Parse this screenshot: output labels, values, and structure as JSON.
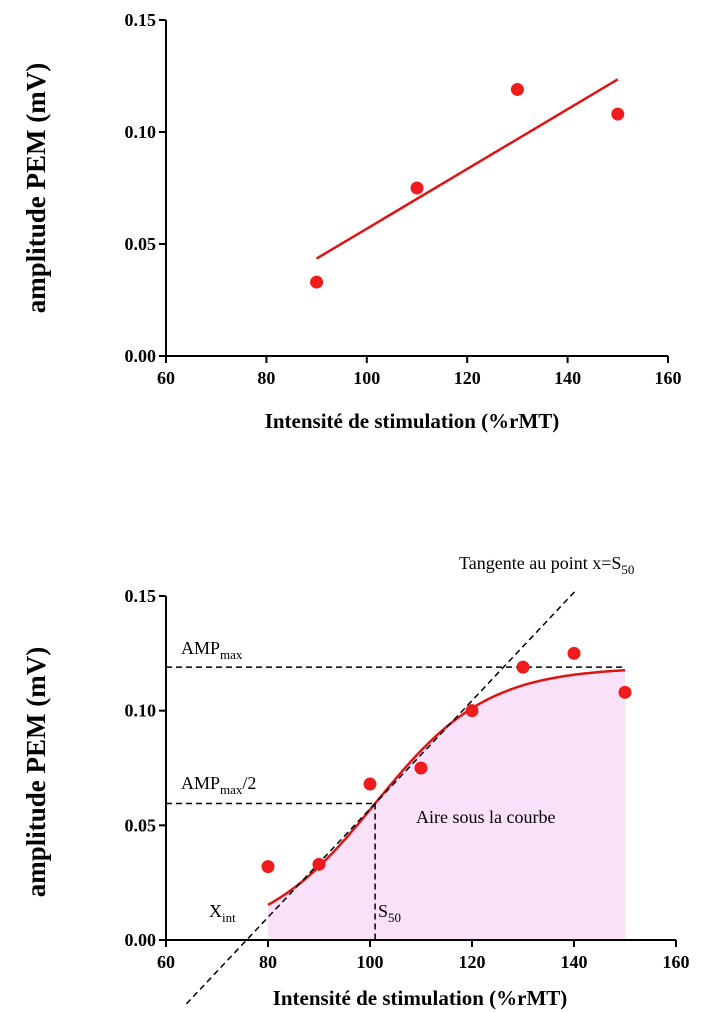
{
  "colors": {
    "points": "#ee1c1c",
    "fit": "#dd1414",
    "auc_fill": "#f9e2f9",
    "axis": "#000000"
  },
  "chart_data": [
    {
      "type": "scatter",
      "xlabel": "Intensité de stimulation (%rMT)",
      "ylabel": "amplitude PEM (mV)",
      "xlim": [
        60,
        160
      ],
      "ylim": [
        0,
        0.15
      ],
      "x_ticks": [
        "60",
        "80",
        "100",
        "120",
        "140",
        "160"
      ],
      "y_ticks": [
        "0.00",
        "0.05",
        "0.10",
        "0.15"
      ],
      "series": [
        {
          "x": [
            90,
            110,
            130,
            150
          ],
          "y": [
            0.033,
            0.075,
            0.119,
            0.108
          ]
        }
      ],
      "fit": {
        "type": "linear",
        "x": [
          90,
          150
        ],
        "y": [
          0.0435,
          0.1235
        ]
      }
    },
    {
      "type": "scatter",
      "xlabel": "Intensité de stimulation (%rMT)",
      "ylabel": "amplitude PEM (mV)",
      "xlim": [
        60,
        160
      ],
      "ylim": [
        0,
        0.15
      ],
      "x_ticks": [
        "60",
        "80",
        "100",
        "120",
        "140",
        "160"
      ],
      "y_ticks": [
        "0.00",
        "0.05",
        "0.10",
        "0.15"
      ],
      "series": [
        {
          "x": [
            80,
            90,
            100,
            110,
            120,
            130,
            140,
            150
          ],
          "y": [
            0.032,
            0.033,
            0.068,
            0.075,
            0.1,
            0.119,
            0.125,
            0.108
          ]
        }
      ],
      "fit": {
        "type": "sigmoid",
        "bottom": 0.0,
        "top": 0.119,
        "x50": 101,
        "slope": 11,
        "x_range": [
          80,
          150
        ]
      },
      "annotations": {
        "tangent": {
          "label": "Tangente au point x=S",
          "sub": "50"
        },
        "amp_max": {
          "label": "AMP",
          "sub": "max",
          "value": 0.119
        },
        "amp_half": {
          "label": "AMP",
          "sub": "max",
          "suffix": "/2",
          "value": 0.0595
        },
        "auc": {
          "label": "Aire sous la courbe"
        },
        "x_int": {
          "label": "X",
          "sub": "int",
          "value": 75.8
        },
        "s50": {
          "label": "S",
          "sub": "50",
          "value": 101
        }
      }
    }
  ]
}
